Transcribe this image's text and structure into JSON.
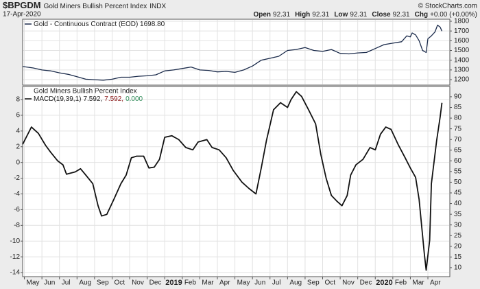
{
  "header": {
    "symbol": "$BPGDM",
    "name": "Gold Miners Bullish Percent Index",
    "exchange": "INDX",
    "date": "17-Apr-2020",
    "copyright": "© StockCharts.com",
    "stats": [
      {
        "label": "Open",
        "value": "92.31"
      },
      {
        "label": "High",
        "value": "92.31"
      },
      {
        "label": "Low",
        "value": "92.31"
      },
      {
        "label": "Close",
        "value": "92.31"
      },
      {
        "label": "Chg",
        "value": "+0.00 (+0.00%)"
      }
    ]
  },
  "chart_data": [
    {
      "type": "line",
      "grid": true,
      "xlim": [
        -0.1,
        24.25
      ],
      "ylim": [
        1144,
        1821
      ],
      "yticks": [
        1200,
        1300,
        1400,
        1500,
        1600,
        1700,
        1800
      ],
      "series": [
        {
          "name": "Gold - Continuous Contract (EOD) 1698.80",
          "color": "#1a2a4a",
          "x": [
            -0.1,
            0.5,
            1,
            1.5,
            2,
            2.5,
            3,
            3.5,
            4,
            4.5,
            5,
            5.5,
            6,
            6.5,
            7,
            7.5,
            8,
            8.5,
            9,
            9.5,
            10,
            10.5,
            11,
            11.5,
            12,
            12.5,
            13,
            13.5,
            14,
            14.5,
            15,
            15.5,
            16,
            16.5,
            17,
            17.5,
            18,
            18.5,
            19,
            19.5,
            20,
            20.5,
            21,
            21.5,
            21.8,
            22,
            22.1,
            22.3,
            22.5,
            22.7,
            22.9,
            23,
            23.2,
            23.4,
            23.55,
            23.7,
            23.8
          ],
          "values": [
            1335,
            1320,
            1300,
            1290,
            1270,
            1255,
            1230,
            1205,
            1200,
            1195,
            1205,
            1225,
            1225,
            1235,
            1240,
            1250,
            1290,
            1300,
            1315,
            1330,
            1300,
            1295,
            1280,
            1285,
            1275,
            1300,
            1340,
            1400,
            1420,
            1440,
            1500,
            1510,
            1530,
            1500,
            1490,
            1510,
            1470,
            1465,
            1475,
            1480,
            1520,
            1560,
            1575,
            1590,
            1650,
            1640,
            1680,
            1660,
            1600,
            1500,
            1480,
            1620,
            1650,
            1690,
            1760,
            1740,
            1698.8
          ]
        }
      ]
    },
    {
      "type": "line",
      "title": "Gold Miners Bullish Percent Index",
      "grid": true,
      "xlim": [
        -0.1,
        24.25
      ],
      "xticks": [
        {
          "value": 0,
          "label": "May"
        },
        {
          "value": 1,
          "label": "Jun"
        },
        {
          "value": 2,
          "label": "Jul"
        },
        {
          "value": 3,
          "label": "Aug"
        },
        {
          "value": 4,
          "label": "Sep"
        },
        {
          "value": 5,
          "label": "Oct"
        },
        {
          "value": 6,
          "label": "Nov"
        },
        {
          "value": 7,
          "label": "Dec"
        },
        8,
        {
          "value": 9,
          "label": "Feb"
        },
        {
          "value": 10,
          "label": "Mar"
        },
        {
          "value": 11,
          "label": "Apr"
        },
        {
          "value": 12,
          "label": "May"
        },
        {
          "value": 13,
          "label": "Jun"
        },
        {
          "value": 14,
          "label": "Jul"
        },
        {
          "value": 15,
          "label": "Aug"
        },
        {
          "value": 16,
          "label": "Sep"
        },
        {
          "value": 17,
          "label": "Oct"
        },
        {
          "value": 18,
          "label": "Nov"
        },
        {
          "value": 19,
          "label": "Dec"
        },
        20,
        {
          "value": 21,
          "label": "Feb"
        },
        {
          "value": 22,
          "label": "Mar"
        },
        {
          "value": 23,
          "label": "Apr"
        }
      ],
      "xtick_years": [
        {
          "value": 8,
          "label": "2019"
        },
        {
          "value": 20,
          "label": "2020"
        }
      ],
      "ylim": [
        -14.52,
        9.66
      ],
      "yticks": [
        -14,
        -12,
        -10,
        -8,
        -6,
        -4,
        -2,
        0,
        2,
        4,
        6,
        8
      ],
      "y2lim": [
        5.8,
        94.8
      ],
      "y2ticks": [
        10,
        15,
        20,
        25,
        30,
        35,
        40,
        45,
        50,
        55,
        60,
        65,
        70,
        75,
        80,
        85,
        90
      ],
      "legend_values": [
        {
          "text": "7.592,",
          "color": "#222222"
        },
        {
          "text": "7.592,",
          "color": "#8b1a1a"
        },
        {
          "text": "0.000",
          "color": "#2e8b57"
        }
      ],
      "series": [
        {
          "name": "MACD(19,39,1)",
          "color": "#111111",
          "x": [
            -0.1,
            0.4,
            0.8,
            1.2,
            1.5,
            1.9,
            2.2,
            2.4,
            2.9,
            3.2,
            3.5,
            3.9,
            4.2,
            4.4,
            4.7,
            5.1,
            5.5,
            5.8,
            6.1,
            6.4,
            6.8,
            7.1,
            7.4,
            7.7,
            8,
            8.4,
            8.8,
            9.2,
            9.6,
            9.9,
            10.4,
            10.7,
            11.1,
            11.5,
            11.9,
            12.4,
            12.8,
            13.2,
            13.5,
            13.8,
            14.2,
            14.6,
            15,
            15.2,
            15.5,
            15.8,
            16.2,
            16.6,
            16.9,
            17.2,
            17.5,
            17.8,
            18.1,
            18.4,
            18.6,
            18.9,
            19.3,
            19.7,
            20,
            20.3,
            20.6,
            20.9,
            21.3,
            21.7,
            22,
            22.3,
            22.5,
            22.8,
            22.9,
            23.1,
            23.2,
            23.5,
            23.7,
            23.8
          ],
          "values": [
            2.3,
            4.5,
            3.7,
            2.2,
            1.3,
            0.2,
            -0.3,
            -1.5,
            -1.2,
            -0.8,
            -1.6,
            -2.7,
            -5.5,
            -6.8,
            -6.6,
            -4.7,
            -2.7,
            -1.6,
            0.6,
            0.8,
            0.8,
            -0.7,
            -0.6,
            0.4,
            3.2,
            3.4,
            2.9,
            1.9,
            1.6,
            2.6,
            2.9,
            1.9,
            1.6,
            0.6,
            -1.0,
            -2.5,
            -3.3,
            -4.0,
            -0.7,
            2.8,
            6.7,
            7.6,
            7.0,
            8.0,
            9.0,
            8.4,
            6.7,
            4.9,
            1.0,
            -2.0,
            -4.2,
            -4.9,
            -5.5,
            -4.2,
            -1.6,
            -0.3,
            0.4,
            1.9,
            1.6,
            3.6,
            4.5,
            4.2,
            2.3,
            0.6,
            -0.7,
            -1.9,
            -4.7,
            -11.7,
            -13.7,
            -9.9,
            -2.7,
            2.8,
            5.8,
            7.592
          ]
        }
      ]
    }
  ]
}
